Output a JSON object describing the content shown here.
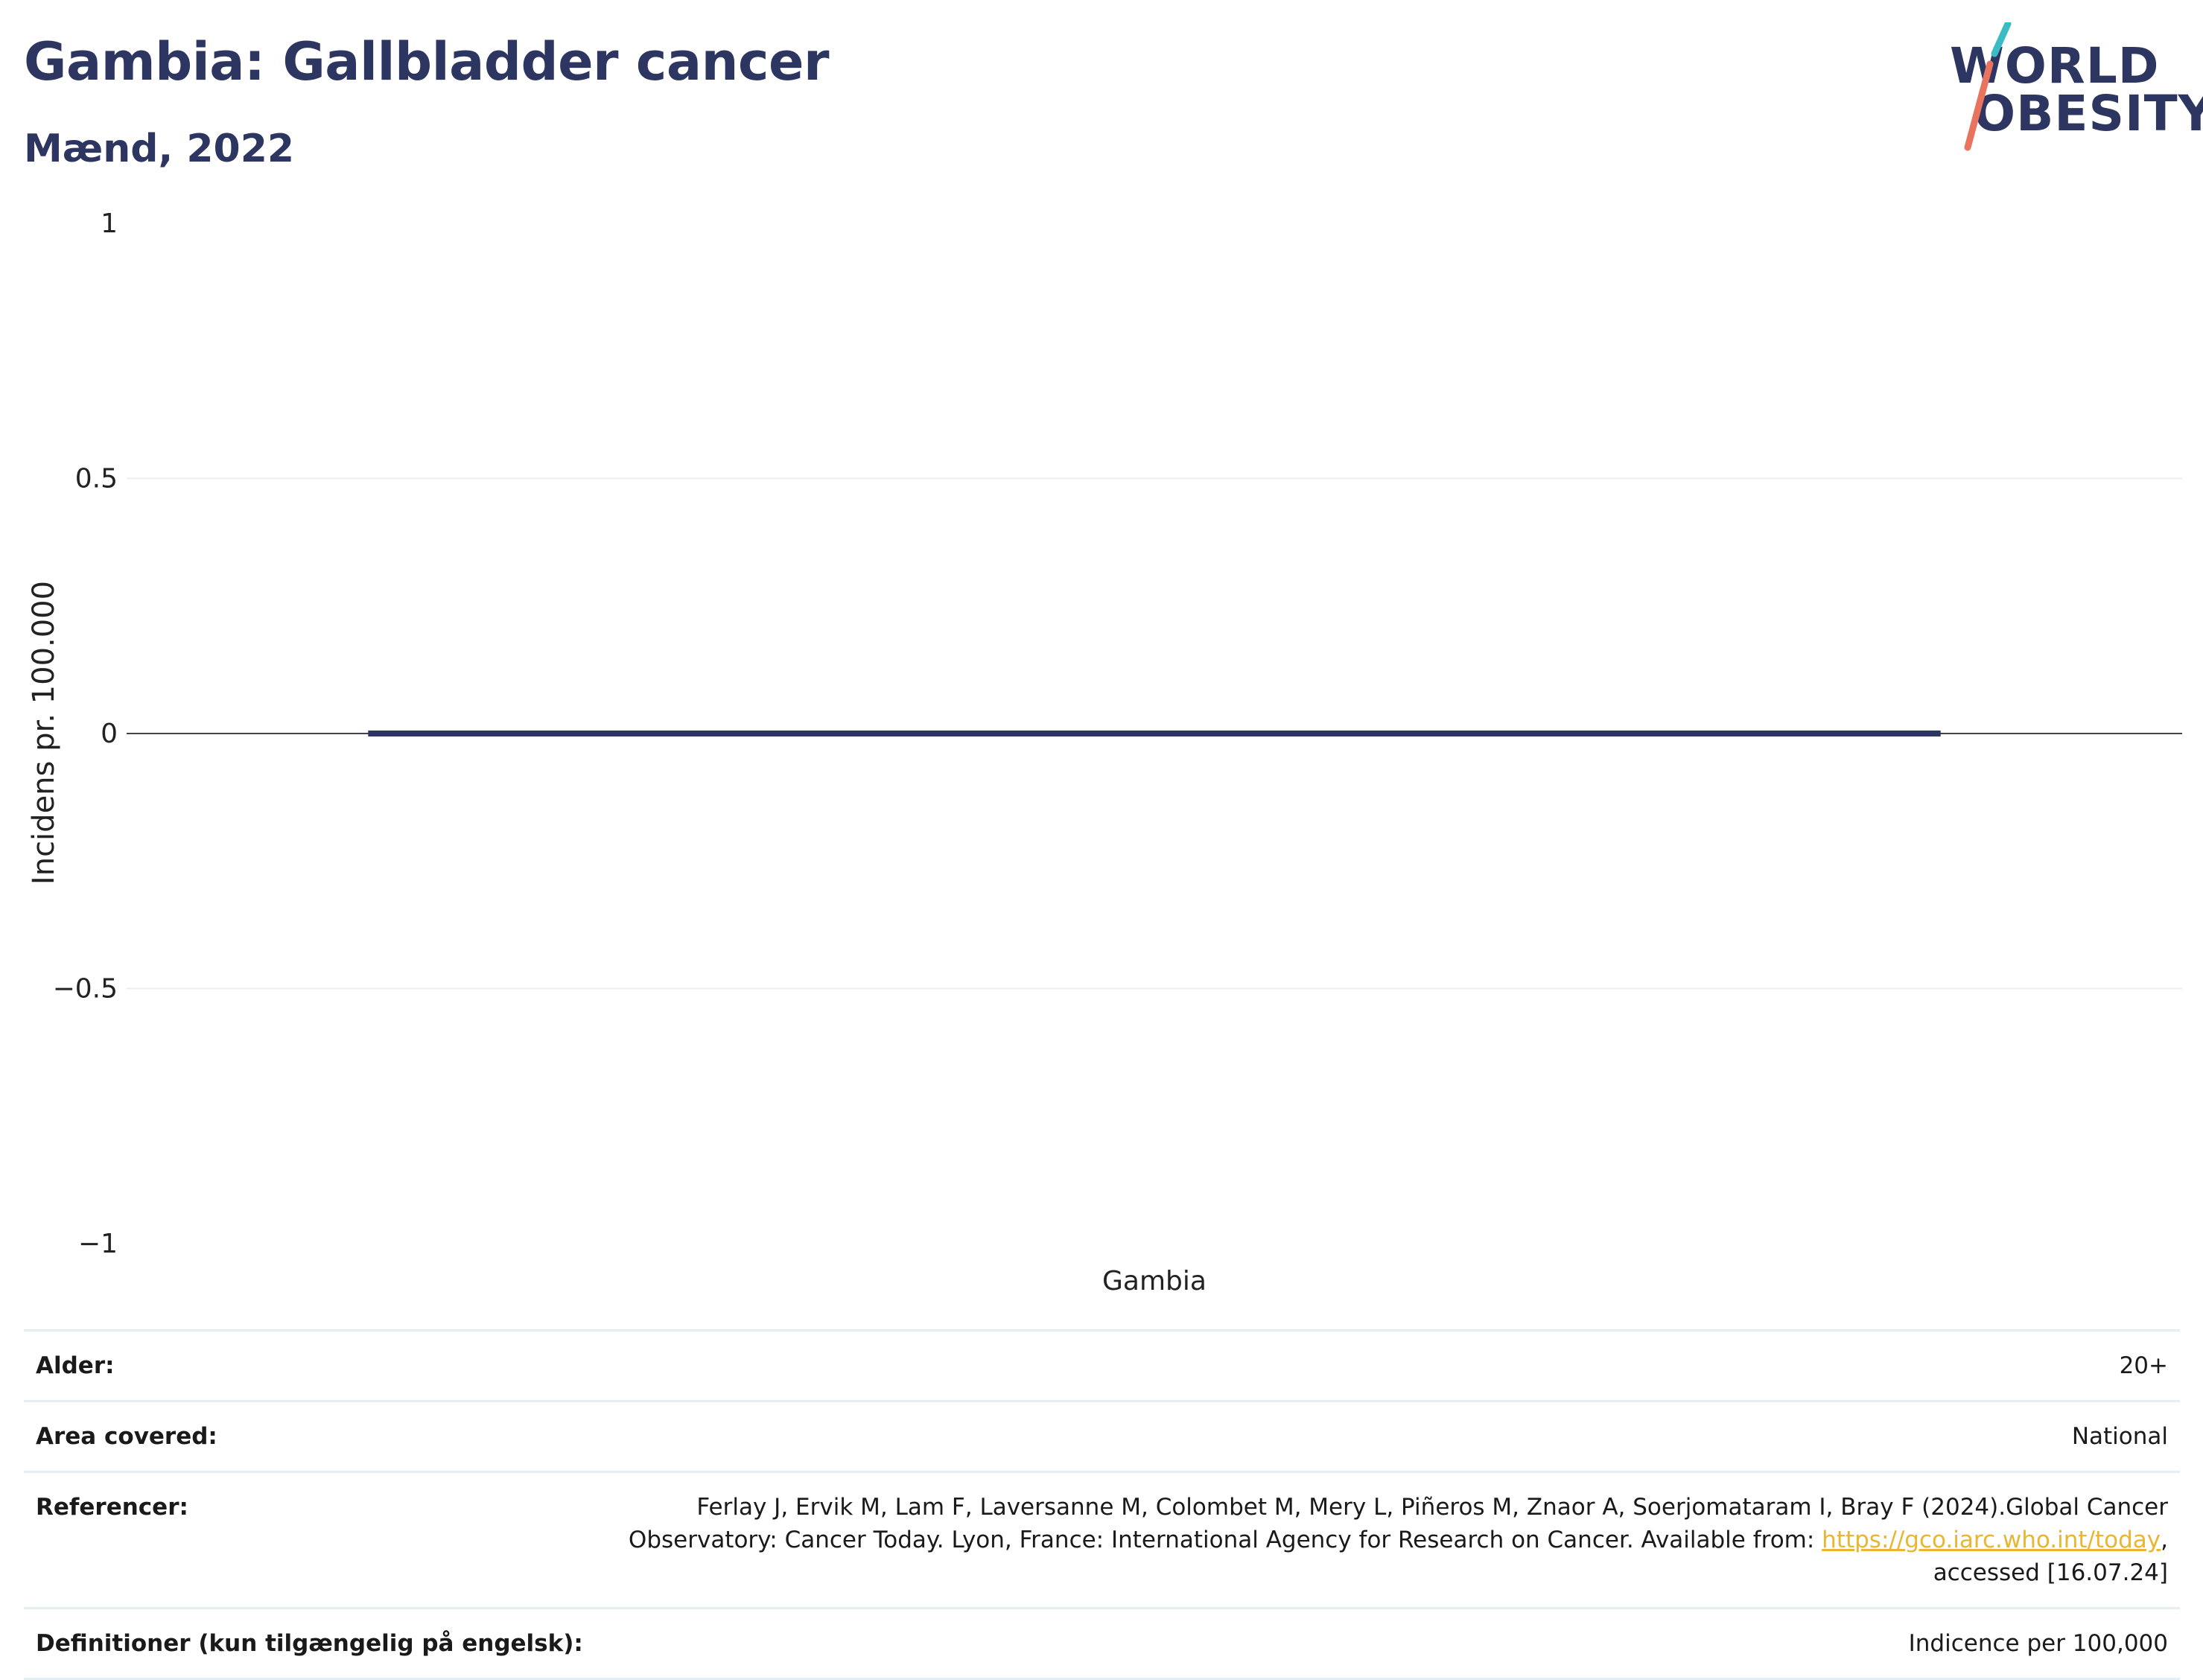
{
  "header": {
    "title": "Gambia: Gallbladder cancer",
    "subtitle": "Mænd, 2022"
  },
  "logo": {
    "line1": "WORLD",
    "line2": "OBESITY",
    "accent_teal": "#3bbcc4",
    "accent_coral": "#e8735e"
  },
  "chart_data": {
    "type": "bar",
    "categories": [
      "Gambia"
    ],
    "series": [
      {
        "values": [
          0
        ]
      }
    ],
    "ylabel": "Incidens pr. 100.000",
    "xlabel": "",
    "ylim": [
      -1,
      1
    ],
    "yticks": [
      1,
      0.5,
      0,
      -0.5,
      -1
    ],
    "ytick_labels": [
      "1",
      "0.5",
      "0",
      "−0.5",
      "−1"
    ],
    "grid": true,
    "bar_color": "#2d3561"
  },
  "info": {
    "rows": [
      {
        "key": "Alder:",
        "value": "20+"
      },
      {
        "key": "Area covered:",
        "value": "National"
      },
      {
        "key": "Referencer:",
        "value_pre": "Ferlay J, Ervik M, Lam F, Laversanne M, Colombet M, Mery L, Piñeros M, Znaor A, Soerjomataram I, Bray F (2024).Global Cancer Observatory: Cancer Today. Lyon, France: International Agency for Research on Cancer. Available from: ",
        "link": "https://gco.iarc.who.int/today",
        "value_post": ", accessed [16.07.24]"
      },
      {
        "key": "Definitioner (kun tilgængelig på engelsk):",
        "value": "Indicence per 100,000"
      }
    ]
  }
}
